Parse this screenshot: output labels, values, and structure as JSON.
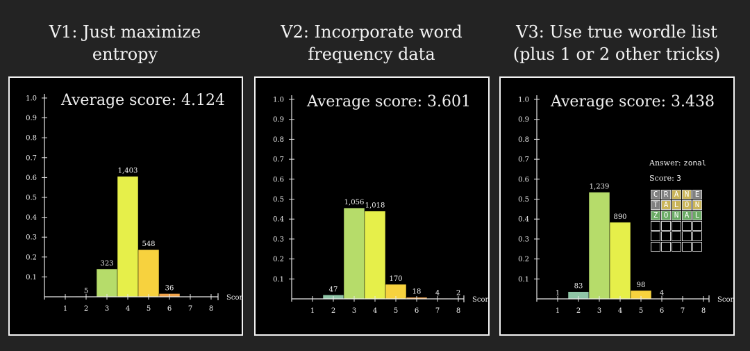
{
  "panels": [
    {
      "title_line1": "V1:  Just maximize",
      "title_line2": "entropy",
      "avg_label": "Average score:",
      "avg_value": "4.124"
    },
    {
      "title_line1": "V2:  Incorporate word",
      "title_line2": "frequency data",
      "avg_label": "Average score:",
      "avg_value": "3.601"
    },
    {
      "title_line1": "V3:  Use true wordle list",
      "title_line2": "(plus 1 or 2 other tricks)",
      "avg_label": "Average score:",
      "avg_value": "3.438"
    }
  ],
  "example": {
    "answer_label": "Answer:",
    "answer_value": "zonal",
    "score_label": "Score:",
    "score_value": "3",
    "guesses": [
      {
        "word": "CRANE",
        "colors": [
          "#808080",
          "#808080",
          "#c9b458",
          "#c9b458",
          "#808080"
        ]
      },
      {
        "word": "TALON",
        "colors": [
          "#808080",
          "#c9b458",
          "#c9b458",
          "#c9b458",
          "#c9b458"
        ]
      },
      {
        "word": "ZONAL",
        "colors": [
          "#6aaa64",
          "#6aaa64",
          "#6aaa64",
          "#6aaa64",
          "#6aaa64"
        ]
      }
    ],
    "rows_total": 6
  },
  "chart_data": [
    {
      "type": "bar",
      "title": "V1:  Just maximize entropy",
      "annotation": "Average score: 4.124",
      "xlabel": "Score",
      "x_ticks": [
        "1",
        "2",
        "3",
        "4",
        "5",
        "6",
        "7",
        "8"
      ],
      "y_ticks": [
        "0.1",
        "0.2",
        "0.3",
        "0.4",
        "0.5",
        "0.6",
        "0.7",
        "0.8",
        "0.9",
        "1.0"
      ],
      "ylim": [
        0,
        1.0
      ],
      "bars": [
        {
          "score": 2,
          "count_label": "5",
          "value": 0.002
        },
        {
          "score": 3,
          "count_label": "323",
          "value": 0.14
        },
        {
          "score": 4,
          "count_label": "1,403",
          "value": 0.606
        },
        {
          "score": 5,
          "count_label": "548",
          "value": 0.237
        },
        {
          "score": 6,
          "count_label": "36",
          "value": 0.016
        }
      ]
    },
    {
      "type": "bar",
      "title": "V2:  Incorporate word frequency data",
      "annotation": "Average score: 3.601",
      "xlabel": "Score",
      "x_ticks": [
        "1",
        "2",
        "3",
        "4",
        "5",
        "6",
        "7",
        "8"
      ],
      "y_ticks": [
        "0.1",
        "0.2",
        "0.3",
        "0.4",
        "0.5",
        "0.6",
        "0.7",
        "0.8",
        "0.9",
        "1.0"
      ],
      "ylim": [
        0,
        1.0
      ],
      "bars": [
        {
          "score": 2,
          "count_label": "47",
          "value": 0.02
        },
        {
          "score": 3,
          "count_label": "1,056",
          "value": 0.456
        },
        {
          "score": 4,
          "count_label": "1,018",
          "value": 0.44
        },
        {
          "score": 5,
          "count_label": "170",
          "value": 0.073
        },
        {
          "score": 6,
          "count_label": "18",
          "value": 0.008
        },
        {
          "score": 7,
          "count_label": "4",
          "value": 0.002
        },
        {
          "score": 8,
          "count_label": "2",
          "value": 0.001
        }
      ]
    },
    {
      "type": "bar",
      "title": "V3:  Use true wordle list (plus 1 or 2 other tricks)",
      "annotation": "Average score: 3.438",
      "xlabel": "Score",
      "x_ticks": [
        "1",
        "2",
        "3",
        "4",
        "5",
        "6",
        "7",
        "8"
      ],
      "y_ticks": [
        "0.1",
        "0.2",
        "0.3",
        "0.4",
        "0.5",
        "0.6",
        "0.7",
        "0.8",
        "0.9",
        "1.0"
      ],
      "ylim": [
        0,
        1.0
      ],
      "bars": [
        {
          "score": 1,
          "count_label": "1",
          "value": 0.0004
        },
        {
          "score": 2,
          "count_label": "83",
          "value": 0.036
        },
        {
          "score": 3,
          "count_label": "1,239",
          "value": 0.535
        },
        {
          "score": 4,
          "count_label": "890",
          "value": 0.384
        },
        {
          "score": 5,
          "count_label": "98",
          "value": 0.042
        },
        {
          "score": 6,
          "count_label": "4",
          "value": 0.002
        }
      ]
    }
  ]
}
